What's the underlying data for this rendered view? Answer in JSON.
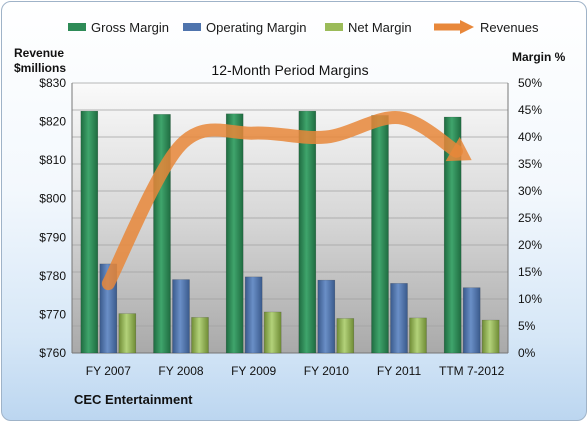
{
  "chart_data": {
    "type": "bar",
    "title": "12-Month Period Margins",
    "categories": [
      "FY 2007",
      "FY 2008",
      "FY 2009",
      "FY 2010",
      "FY 2011",
      "TTM 7-2012"
    ],
    "series": [
      {
        "name": "Gross Margin",
        "axis": "right",
        "values": [
          44.8,
          44.2,
          44.3,
          44.8,
          44.0,
          43.7
        ],
        "color": "#2e8b57"
      },
      {
        "name": "Operating Margin",
        "axis": "right",
        "values": [
          16.5,
          13.6,
          14.1,
          13.5,
          12.9,
          12.1
        ],
        "color": "#4f74ad"
      },
      {
        "name": "Net Margin",
        "axis": "right",
        "values": [
          7.3,
          6.6,
          7.6,
          6.4,
          6.5,
          6.1
        ],
        "color": "#9bbb59"
      },
      {
        "name": "Revenues",
        "axis": "left",
        "type": "line",
        "values": [
          778,
          814,
          817,
          816,
          821,
          810
        ],
        "color": "#e8873a"
      }
    ],
    "y_left": {
      "label_line1": "Revenue",
      "label_line2": "$millions",
      "min": 760,
      "max": 830,
      "ticks": [
        "$760",
        "$770",
        "$780",
        "$790",
        "$800",
        "$810",
        "$820",
        "$830"
      ]
    },
    "y_right": {
      "label": "Margin %",
      "min": 0,
      "max": 50,
      "ticks": [
        "0%",
        "5%",
        "10%",
        "15%",
        "20%",
        "25%",
        "30%",
        "35%",
        "40%",
        "45%",
        "50%"
      ]
    },
    "grid": true,
    "legend_position": "top",
    "footer": "CEC Entertainment"
  }
}
